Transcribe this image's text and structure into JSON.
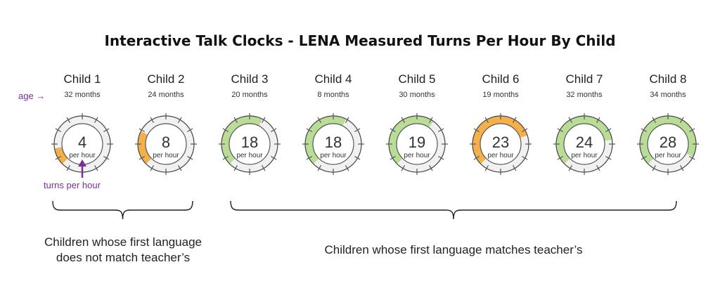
{
  "title": "Interactive Talk Clocks - LENA Measured Turns Per Hour By Child",
  "age_label": "age →",
  "unit_label": "per hour",
  "turns_per_hour_label": "turns per hour",
  "colors": {
    "orange": "#f4b04b",
    "green": "#b9dc96",
    "annotation": "#7a2f95"
  },
  "groups": [
    {
      "label_lines": [
        "Children whose first language",
        "does not match teacher’s"
      ]
    },
    {
      "label_lines": [
        "Children whose first language matches teacher’s"
      ]
    }
  ],
  "chart_data": {
    "type": "gauge",
    "title": "Interactive Talk Clocks - LENA Measured Turns Per Hour By Child",
    "children": [
      {
        "name": "Child 1",
        "age": "32 months",
        "turns_per_hour": 4,
        "color": "orange",
        "group": 0
      },
      {
        "name": "Child 2",
        "age": "24 months",
        "turns_per_hour": 8,
        "color": "orange",
        "group": 0
      },
      {
        "name": "Child 3",
        "age": "20 months",
        "turns_per_hour": 18,
        "color": "green",
        "group": 1
      },
      {
        "name": "Child 4",
        "age": "8 months",
        "turns_per_hour": 18,
        "color": "green",
        "group": 1
      },
      {
        "name": "Child 5",
        "age": "30 months",
        "turns_per_hour": 19,
        "color": "green",
        "group": 1
      },
      {
        "name": "Child 6",
        "age": "19 months",
        "turns_per_hour": 23,
        "color": "orange",
        "group": 1
      },
      {
        "name": "Child 7",
        "age": "32 months",
        "turns_per_hour": 24,
        "color": "green",
        "group": 1
      },
      {
        "name": "Child 8",
        "age": "34 months",
        "turns_per_hour": 28,
        "color": "green",
        "group": 1
      }
    ]
  }
}
